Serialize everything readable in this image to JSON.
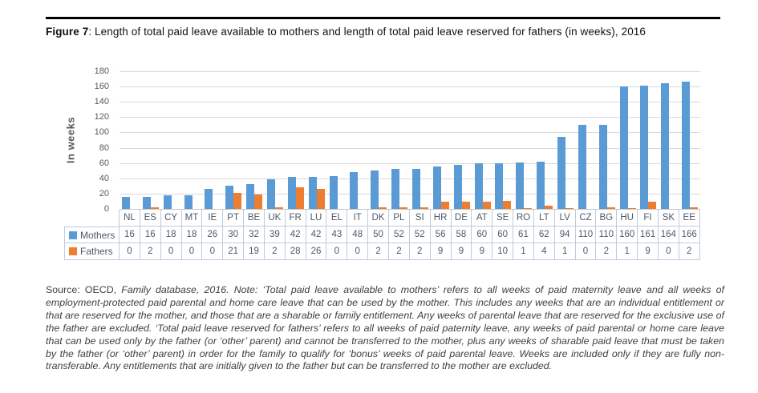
{
  "figure": {
    "label": "Figure 7",
    "title": ": Length of total paid leave available to mothers and length of total paid leave reserved for fathers (in weeks), 2016"
  },
  "chart_data": {
    "type": "bar",
    "title": "Length of total paid leave available to mothers and length of total paid leave reserved for fathers (in weeks), 2016",
    "xlabel": "",
    "ylabel": "In weeks",
    "ylim": [
      0,
      180
    ],
    "ytick_step": 20,
    "grid": true,
    "legend_position": "data-table-left",
    "categories": [
      "NL",
      "ES",
      "CY",
      "MT",
      "IE",
      "PT",
      "BE",
      "UK",
      "FR",
      "LU",
      "EL",
      "IT",
      "DK",
      "PL",
      "SI",
      "HR",
      "DE",
      "AT",
      "SE",
      "RO",
      "LT",
      "LV",
      "CZ",
      "BG",
      "HU",
      "FI",
      "SK",
      "EE"
    ],
    "series": [
      {
        "name": "Mothers",
        "color": "#5b9bd5",
        "values": [
          16,
          16,
          18,
          18,
          26,
          30,
          32,
          39,
          42,
          42,
          43,
          48,
          50,
          52,
          52,
          56,
          58,
          60,
          60,
          61,
          62,
          94,
          110,
          110,
          160,
          161,
          164,
          166
        ]
      },
      {
        "name": "Fathers",
        "color": "#ed7d31",
        "values": [
          0,
          2,
          0,
          0,
          0,
          21,
          19,
          2,
          28,
          26,
          0,
          0,
          2,
          2,
          2,
          9,
          9,
          9,
          10,
          1,
          4,
          1,
          0,
          2,
          1,
          9,
          0,
          2
        ]
      }
    ],
    "gridline_color": "#d9d9d9",
    "axis_text_color": "#595959",
    "table_border_color": "#bccbe2"
  },
  "source_note": {
    "label": "Source",
    "publisher": ": OECD, ",
    "note_text": "Family database, 2016. Note: ‘Total paid leave available to mothers’ refers to all weeks of paid maternity leave and all weeks of employment-protected paid parental and home care leave that can be used by the mother. This includes any weeks that are an individual entitlement or that are reserved for the mother, and those that are a sharable or family entitlement. Any weeks of parental leave that are reserved for the exclusive use of the father are excluded. ‘Total paid leave reserved for fathers’ refers to all weeks of paid paternity leave, any weeks of paid parental or home care leave that can be used only by the father (or ‘other’ parent) and cannot be transferred to the mother, plus any weeks of sharable paid leave that must be taken by the father (or ‘other’ parent) in order for the family to qualify for ‘bonus’ weeks of paid parental leave. Weeks are included only if they are fully non-transferable. Any entitlements that are initially given to the father but can be transferred to the mother are excluded."
  }
}
